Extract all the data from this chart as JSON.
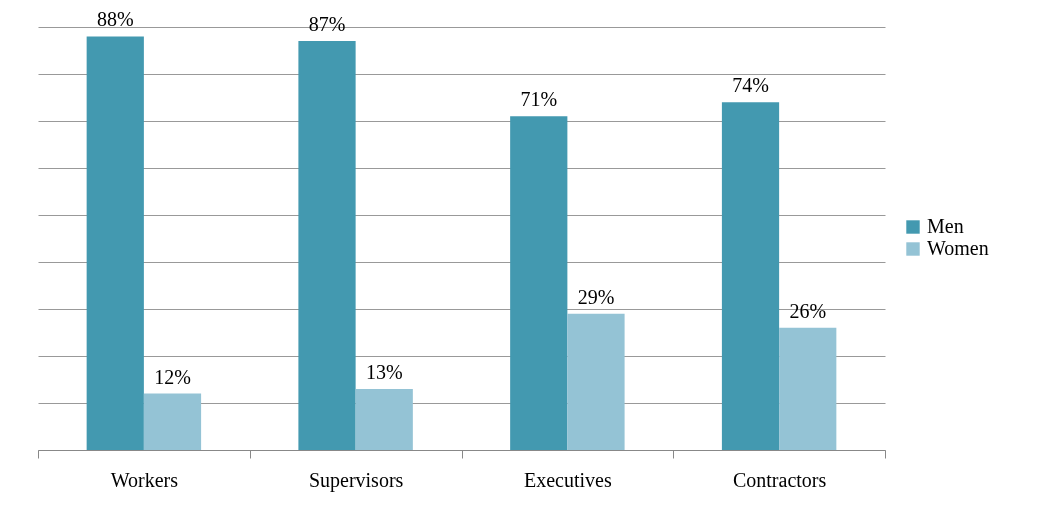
{
  "chart_data": {
    "type": "bar",
    "categories": [
      "Workers",
      "Supervisors",
      "Executives",
      "Contractors"
    ],
    "series": [
      {
        "name": "Men",
        "color": "#4399b0",
        "values": [
          88,
          87,
          71,
          74
        ],
        "value_labels": [
          "88%",
          "87%",
          "71%",
          "74%"
        ]
      },
      {
        "name": "Women",
        "color": "#94c3d5",
        "values": [
          12,
          13,
          29,
          26
        ],
        "value_labels": [
          "12%",
          "13%",
          "29%",
          "26%"
        ]
      }
    ],
    "grid": "y",
    "legend": "right"
  }
}
